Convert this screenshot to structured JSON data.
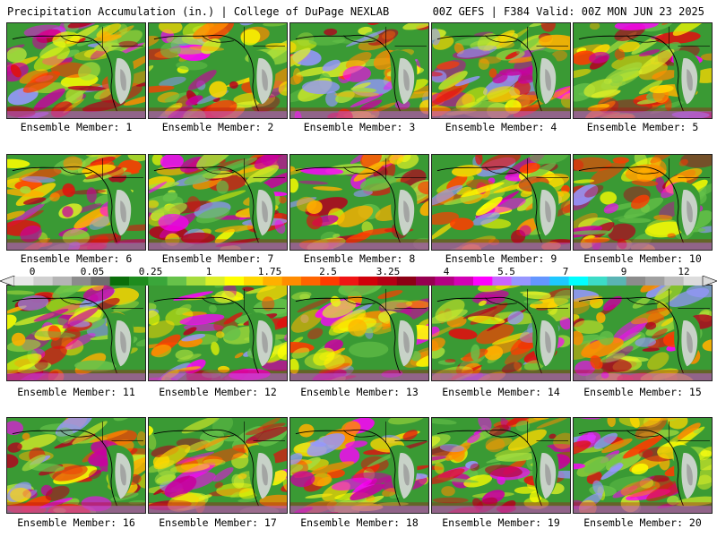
{
  "header": {
    "left": "Precipitation Accumulation (in.) | College of DuPage NEXLAB",
    "right": "00Z GEFS | F384 Valid: 00Z MON JUN 23 2025"
  },
  "members": [
    {
      "label": "Ensemble Member: 1"
    },
    {
      "label": "Ensemble Member: 2"
    },
    {
      "label": "Ensemble Member: 3"
    },
    {
      "label": "Ensemble Member: 4"
    },
    {
      "label": "Ensemble Member: 5"
    },
    {
      "label": "Ensemble Member: 6"
    },
    {
      "label": "Ensemble Member: 7"
    },
    {
      "label": "Ensemble Member: 8"
    },
    {
      "label": "Ensemble Member: 9"
    },
    {
      "label": "Ensemble Member: 10"
    },
    {
      "label": "Ensemble Member: 11"
    },
    {
      "label": "Ensemble Member: 12"
    },
    {
      "label": "Ensemble Member: 13"
    },
    {
      "label": "Ensemble Member: 14"
    },
    {
      "label": "Ensemble Member: 15"
    },
    {
      "label": "Ensemble Member: 16"
    },
    {
      "label": "Ensemble Member: 17"
    },
    {
      "label": "Ensemble Member: 18"
    },
    {
      "label": "Ensemble Member: 19"
    },
    {
      "label": "Ensemble Member: 20"
    }
  ],
  "colorbar": {
    "labels": [
      "0",
      "0.05",
      "0.25",
      "1",
      "1.75",
      "2.5",
      "3.25",
      "4",
      "5.5",
      "7",
      "9",
      "12"
    ],
    "colors": [
      "#e8e8e8",
      "#cfcfcf",
      "#b4b4b4",
      "#8c8c8c",
      "#6e6e6e",
      "#0a6e0a",
      "#1e8c1e",
      "#3aa63a",
      "#66c24a",
      "#a6dc3c",
      "#dcef28",
      "#ffff00",
      "#ffd800",
      "#ffb000",
      "#ff8c00",
      "#ff6400",
      "#ff3c00",
      "#f01414",
      "#d0000a",
      "#b40014",
      "#8c0014",
      "#960050",
      "#b40082",
      "#d200b4",
      "#ff00ff",
      "#c864ff",
      "#9696ff",
      "#6496ff",
      "#1ec8ff",
      "#00ffff",
      "#3cdcc8",
      "#5ab4b4",
      "#8c8c8c",
      "#a0a0a0",
      "#bebebe",
      "#dcdcdc"
    ]
  }
}
